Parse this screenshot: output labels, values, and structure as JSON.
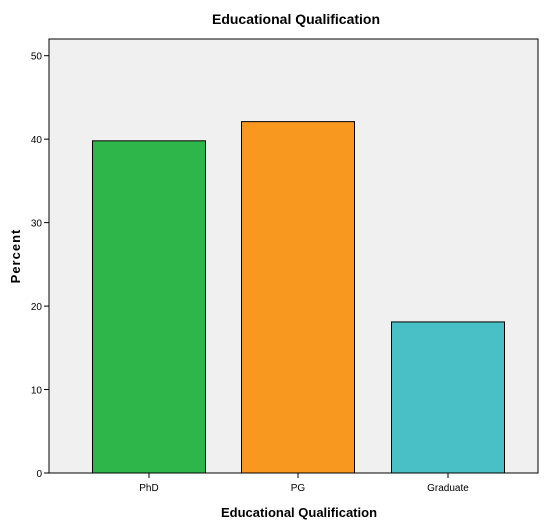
{
  "chart_data": {
    "type": "bar",
    "title": "Educational Qualification",
    "xlabel": "Educational Qualification",
    "ylabel": "Percent",
    "categories": [
      "PhD",
      "PG",
      "Graduate"
    ],
    "values": [
      39.8,
      42.1,
      18.1
    ],
    "ylim": [
      0,
      52
    ],
    "yticks": [
      0,
      10,
      20,
      30,
      40,
      50
    ],
    "colors": [
      "#2fb64a",
      "#f8981e",
      "#48c0c6"
    ],
    "plot_background": "#f0f0f0",
    "grid": false,
    "legend": "none"
  }
}
